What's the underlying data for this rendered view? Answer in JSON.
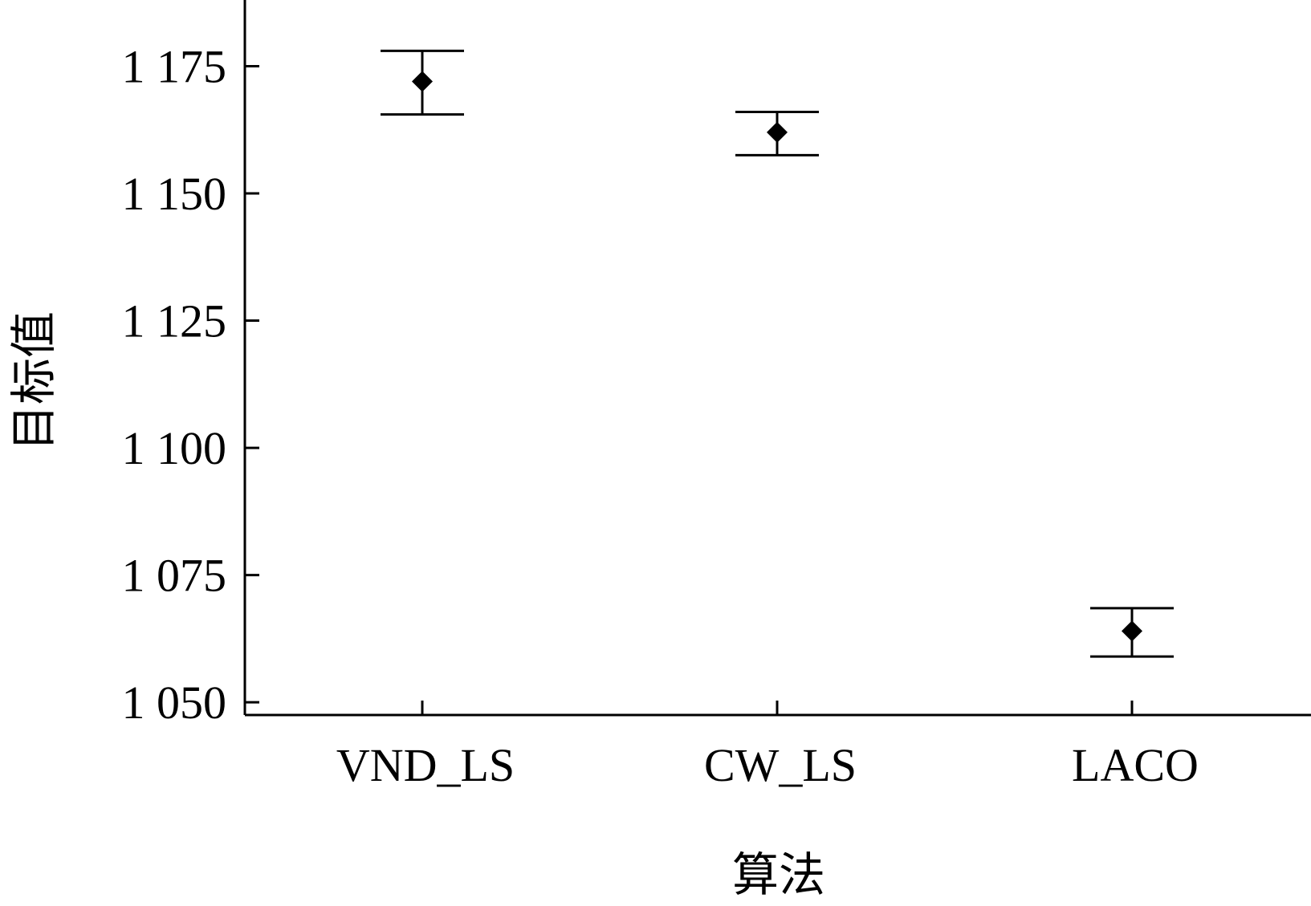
{
  "chart_data": {
    "type": "scatter",
    "xlabel": "算法",
    "ylabel": "目标值",
    "categories": [
      "VND_LS",
      "CW_LS",
      "LACO"
    ],
    "series": [
      {
        "marker": "diamond",
        "values": [
          1172,
          1162,
          1064
        ],
        "error_upper": [
          1178,
          1166,
          1068.5
        ],
        "error_lower": [
          1165.5,
          1157.5,
          1059
        ]
      }
    ],
    "ylim": [
      1047.5,
      1188
    ],
    "yticks": [
      1050,
      1075,
      1100,
      1125,
      1150,
      1175
    ],
    "ytick_labels": [
      "1 050",
      "1 075",
      "1 100",
      "1 125",
      "1 150",
      "1 175"
    ],
    "grid": false,
    "colors": {
      "marker": "#000000",
      "axis": "#000000",
      "background": "#ffffff"
    }
  }
}
